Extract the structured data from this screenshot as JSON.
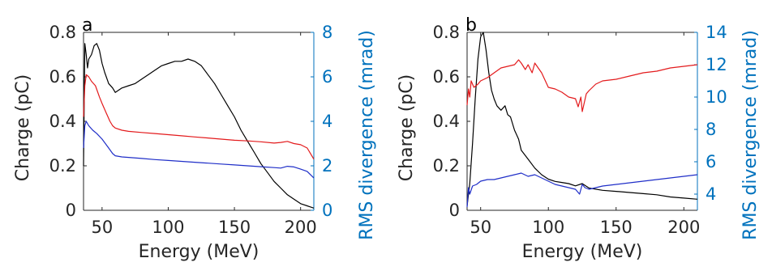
{
  "colors": {
    "charge": "#000000",
    "series_red": "#e31a1c",
    "series_blue": "#1f2ec8",
    "right_axis": "#0072bd"
  },
  "chart_data": [
    {
      "type": "line",
      "panel_label": "a",
      "xlabel": "Energy (MeV)",
      "ylabel_left": "Charge (pC)",
      "ylabel_right": "RMS divergence (mrad)",
      "xlim": [
        36,
        210
      ],
      "ylim_left": [
        0,
        0.8
      ],
      "ylim_right": [
        0,
        8
      ],
      "xticks": [
        50,
        100,
        150,
        200
      ],
      "yticks_left": [
        "0",
        "0.2",
        "0.4",
        "0.6",
        "0.8"
      ],
      "yticks_right": [
        "0",
        "2",
        "4",
        "6",
        "8"
      ],
      "series": [
        {
          "axis": "left",
          "color": "#000000",
          "x": [
            36,
            37,
            38,
            39,
            40,
            42,
            44,
            46,
            48,
            50,
            52,
            55,
            58,
            60,
            65,
            70,
            75,
            80,
            85,
            90,
            95,
            100,
            105,
            110,
            115,
            120,
            125,
            130,
            135,
            140,
            145,
            150,
            155,
            160,
            165,
            170,
            175,
            180,
            185,
            190,
            195,
            200,
            205,
            210
          ],
          "y": [
            0.2,
            0.75,
            0.7,
            0.64,
            0.68,
            0.7,
            0.74,
            0.75,
            0.72,
            0.66,
            0.62,
            0.57,
            0.55,
            0.53,
            0.55,
            0.56,
            0.57,
            0.59,
            0.61,
            0.63,
            0.65,
            0.66,
            0.67,
            0.67,
            0.68,
            0.67,
            0.65,
            0.61,
            0.57,
            0.52,
            0.47,
            0.42,
            0.36,
            0.31,
            0.26,
            0.21,
            0.17,
            0.13,
            0.1,
            0.07,
            0.05,
            0.03,
            0.02,
            0.01
          ]
        },
        {
          "axis": "right",
          "color": "#e31a1c",
          "x": [
            36,
            37,
            38,
            40,
            42,
            45,
            48,
            50,
            53,
            56,
            58,
            60,
            65,
            70,
            80,
            90,
            100,
            110,
            120,
            130,
            140,
            150,
            160,
            170,
            180,
            185,
            190,
            195,
            200,
            205,
            210
          ],
          "y": [
            4.2,
            5.6,
            6.1,
            6.0,
            5.8,
            5.6,
            5.1,
            4.8,
            4.4,
            4.0,
            3.8,
            3.7,
            3.6,
            3.55,
            3.5,
            3.45,
            3.4,
            3.35,
            3.3,
            3.25,
            3.2,
            3.15,
            3.12,
            3.08,
            3.02,
            3.05,
            3.1,
            3.0,
            2.95,
            2.8,
            2.3
          ]
        },
        {
          "axis": "right",
          "color": "#1f2ec8",
          "x": [
            36,
            37,
            38,
            40,
            43,
            46,
            50,
            55,
            58,
            60,
            65,
            70,
            80,
            90,
            100,
            110,
            120,
            130,
            140,
            150,
            160,
            170,
            180,
            185,
            190,
            195,
            200,
            205,
            210
          ],
          "y": [
            2.8,
            3.8,
            4.0,
            3.8,
            3.6,
            3.45,
            3.2,
            2.8,
            2.55,
            2.45,
            2.4,
            2.38,
            2.33,
            2.28,
            2.24,
            2.2,
            2.16,
            2.12,
            2.08,
            2.04,
            2.0,
            1.96,
            1.92,
            1.9,
            1.98,
            1.95,
            1.85,
            1.75,
            1.45
          ]
        }
      ]
    },
    {
      "type": "line",
      "panel_label": "b",
      "xlabel": "Energy (MeV)",
      "ylabel_left": "Charge (pC)",
      "ylabel_right": "RMS divergence (mrad)",
      "xlim": [
        40,
        210
      ],
      "ylim_left": [
        0,
        0.8
      ],
      "ylim_right": [
        3,
        14
      ],
      "xticks": [
        50,
        100,
        150,
        200
      ],
      "yticks_left": [
        "0",
        "0.2",
        "0.4",
        "0.6",
        "0.8"
      ],
      "yticks_right": [
        "4",
        "6",
        "8",
        "10",
        "12",
        "14"
      ],
      "series": [
        {
          "axis": "left",
          "color": "#000000",
          "x": [
            40,
            42,
            44,
            46,
            48,
            50,
            52,
            54,
            56,
            58,
            60,
            62,
            65,
            68,
            70,
            72,
            75,
            78,
            80,
            85,
            90,
            95,
            100,
            105,
            110,
            115,
            120,
            125,
            130,
            140,
            150,
            160,
            170,
            180,
            190,
            200,
            210
          ],
          "y": [
            0.02,
            0.12,
            0.3,
            0.5,
            0.68,
            0.78,
            0.8,
            0.72,
            0.62,
            0.54,
            0.5,
            0.47,
            0.45,
            0.47,
            0.43,
            0.42,
            0.36,
            0.32,
            0.27,
            0.23,
            0.19,
            0.16,
            0.14,
            0.13,
            0.125,
            0.12,
            0.11,
            0.12,
            0.1,
            0.09,
            0.085,
            0.08,
            0.075,
            0.07,
            0.06,
            0.055,
            0.05
          ]
        },
        {
          "axis": "right",
          "color": "#e31a1c",
          "x": [
            40,
            41,
            42,
            43,
            45,
            48,
            50,
            55,
            60,
            65,
            70,
            75,
            78,
            80,
            83,
            85,
            88,
            90,
            95,
            100,
            105,
            110,
            115,
            120,
            122,
            124,
            125,
            128,
            130,
            135,
            140,
            150,
            160,
            170,
            180,
            190,
            200,
            210
          ],
          "y": [
            9.5,
            10.5,
            10.0,
            11.0,
            10.6,
            10.8,
            11.0,
            11.2,
            11.5,
            11.8,
            11.9,
            12.0,
            12.3,
            12.1,
            11.7,
            12.0,
            11.5,
            12.1,
            11.5,
            10.6,
            10.5,
            10.3,
            10.0,
            9.9,
            9.4,
            10.0,
            9.1,
            10.2,
            10.4,
            10.8,
            11.0,
            11.1,
            11.3,
            11.5,
            11.6,
            11.8,
            11.9,
            12.0
          ]
        },
        {
          "axis": "right",
          "color": "#1f2ec8",
          "x": [
            40,
            41,
            42,
            44,
            47,
            50,
            55,
            60,
            65,
            70,
            75,
            80,
            85,
            90,
            95,
            100,
            105,
            110,
            115,
            120,
            123,
            125,
            127,
            130,
            140,
            150,
            160,
            170,
            180,
            190,
            200,
            210
          ],
          "y": [
            3.2,
            4.4,
            4.0,
            4.5,
            4.6,
            4.8,
            4.9,
            4.9,
            5.0,
            5.1,
            5.2,
            5.3,
            5.1,
            5.2,
            5.0,
            4.8,
            4.6,
            4.5,
            4.4,
            4.3,
            4.0,
            4.6,
            4.4,
            4.3,
            4.5,
            4.6,
            4.7,
            4.8,
            4.9,
            5.0,
            5.1,
            5.2
          ]
        }
      ]
    }
  ]
}
